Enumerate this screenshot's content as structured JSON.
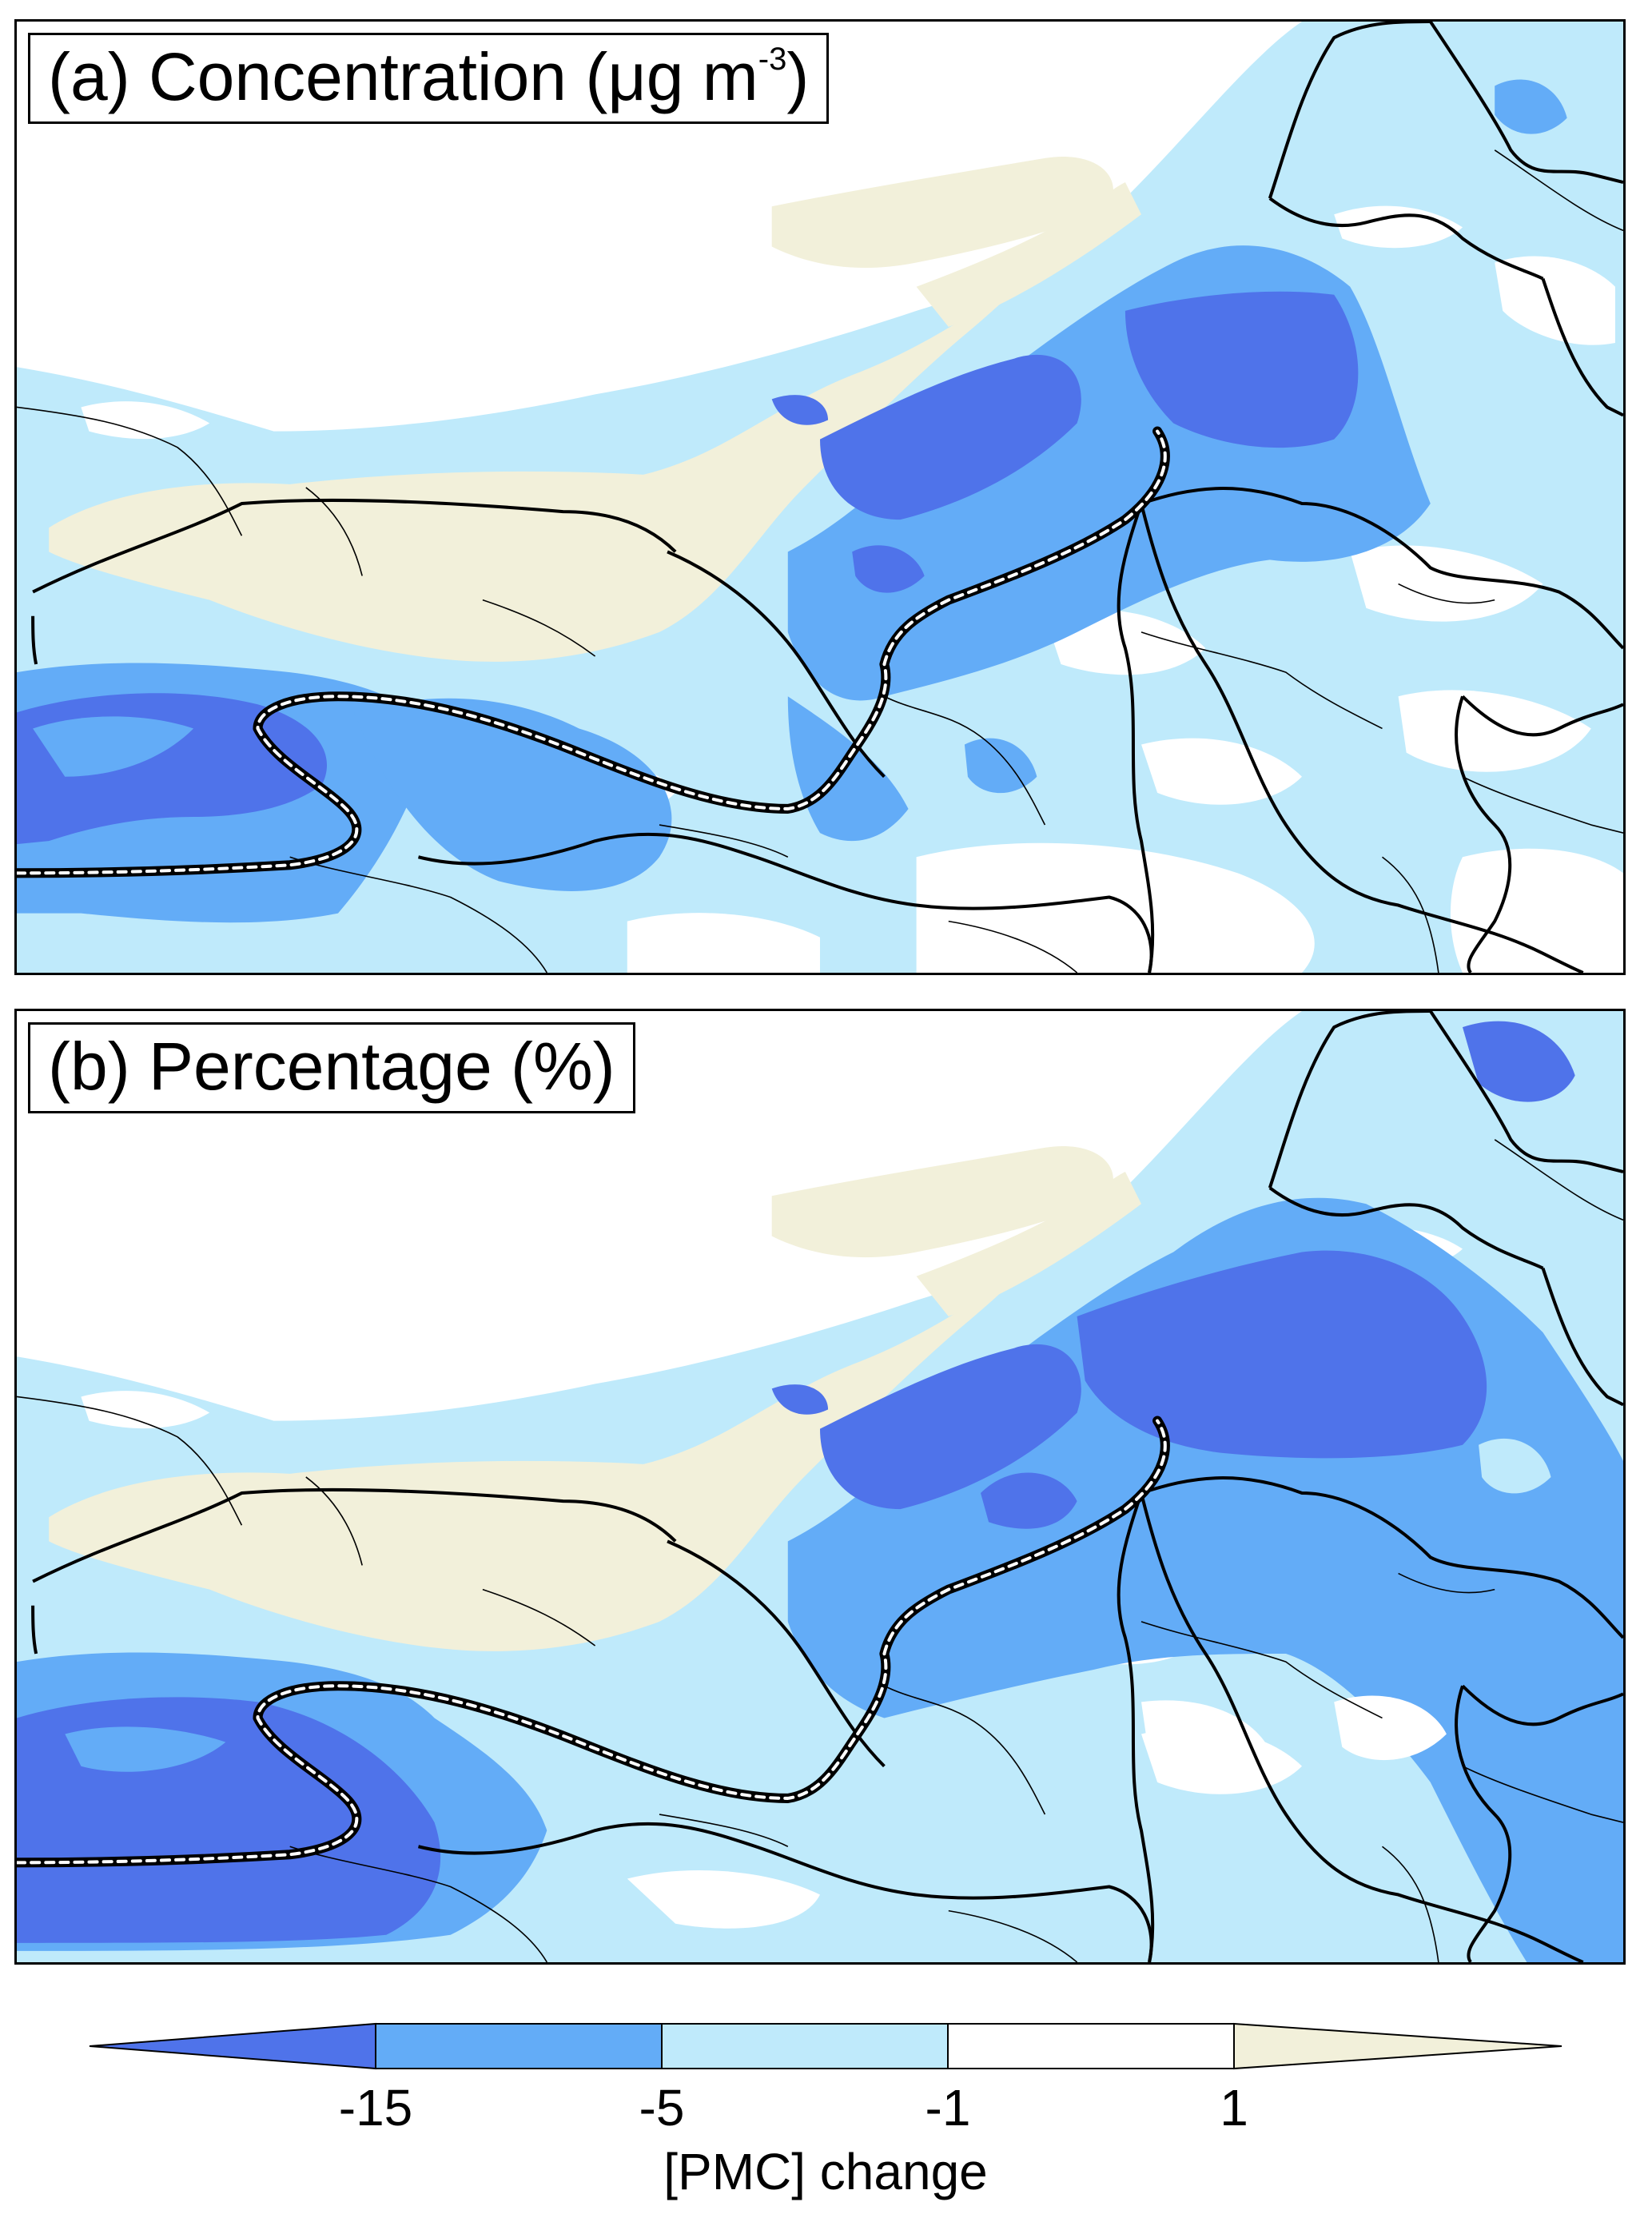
{
  "panels": [
    {
      "id": "a",
      "prefix": "(a)",
      "title": "Concentration",
      "unit_open": "(μg m",
      "unit_exp": "-3",
      "unit_close": ")"
    },
    {
      "id": "b",
      "prefix": "(b)",
      "title": "Percentage (%)"
    }
  ],
  "legend": {
    "label": "[PMC] change",
    "ticks": [
      "-15",
      "-5",
      "-1",
      "1"
    ],
    "bins": [
      {
        "range": "< -15",
        "color": "#4f73ea"
      },
      {
        "range": "-15 to -5",
        "color": "#63acf7"
      },
      {
        "range": "-5 to -1",
        "color": "#bfeafb"
      },
      {
        "range": "-1 to 1",
        "color": "#ffffff"
      },
      {
        "range": "> 1",
        "color": "#f2f0da"
      }
    ]
  },
  "colors": {
    "strong_decrease": "#4f73ea",
    "moderate_decrease": "#63acf7",
    "slight_decrease": "#bfeafb",
    "near_zero": "#ffffff",
    "increase": "#f2f0da",
    "boundary": "#000000"
  }
}
